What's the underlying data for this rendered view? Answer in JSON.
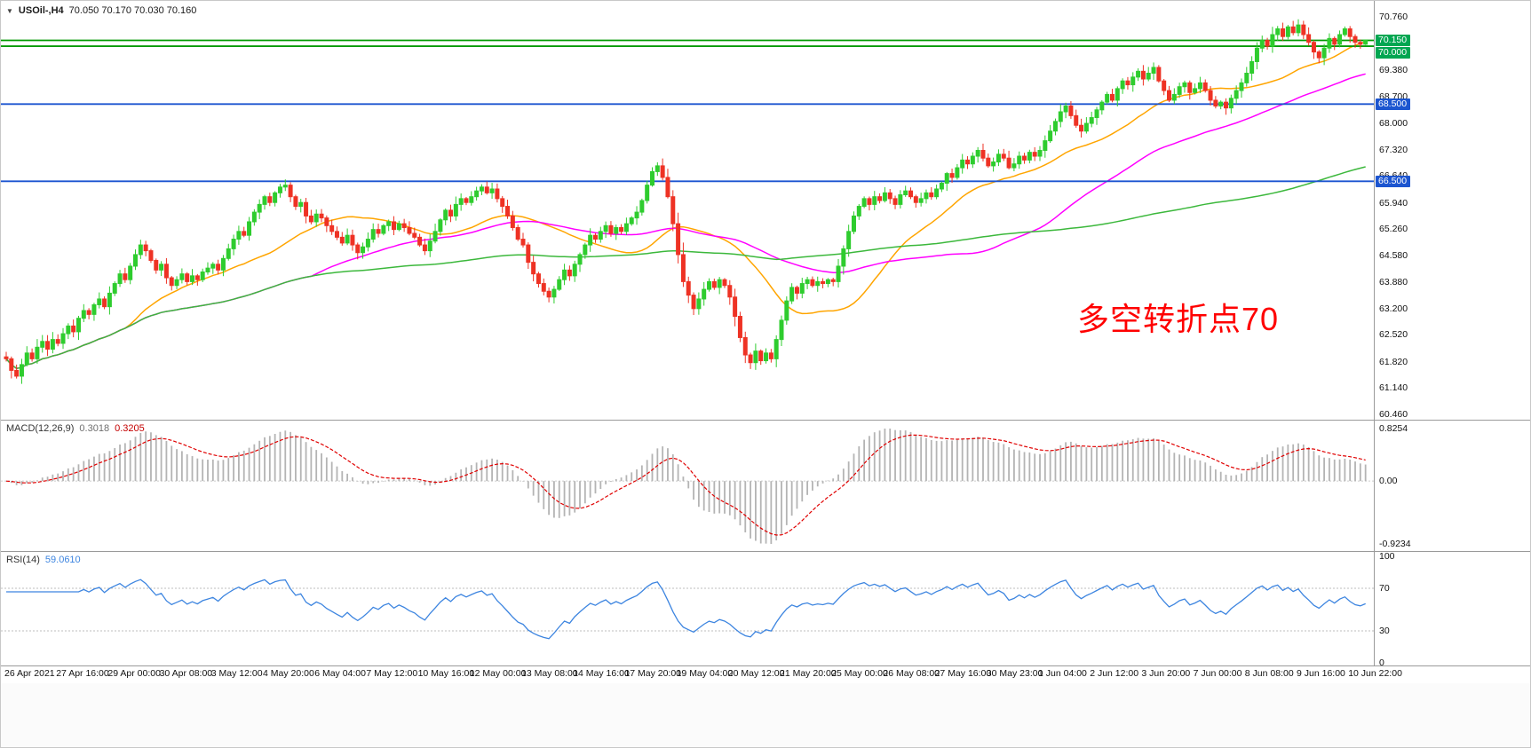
{
  "header": {
    "collapse_icon": "▼",
    "symbol_period": "USOil-,H4",
    "ohlc": "70.050 70.170 70.030 70.160"
  },
  "annotation": {
    "text": "多空转折点70",
    "color": "#ff0000"
  },
  "colors": {
    "candle_up": "#2ecc2e",
    "candle_down": "#ee3224",
    "ma_fast": "#ffa500",
    "ma_mid": "#ff00ff",
    "ma_slow": "#3cb83c",
    "hline_green": "#009a00",
    "hline_blue": "#1c55d0",
    "macd_histogram": "#b4b4b4",
    "macd_signal": "#e00000",
    "rsi_line": "#3d85e0",
    "tag_green": "#00a651",
    "tag_blue": "#1c55d0"
  },
  "main_chart": {
    "y_axis_labels": [
      "70.760",
      "69.380",
      "68.700",
      "68.000",
      "67.320",
      "66.640",
      "65.940",
      "65.260",
      "64.580",
      "63.880",
      "63.200",
      "62.520",
      "61.820",
      "61.140",
      "60.460"
    ],
    "price_tags": [
      {
        "value": "70.150",
        "color": "#00a651"
      },
      {
        "value": "70.000",
        "color": "#00a651"
      },
      {
        "value": "68.500",
        "color": "#1c55d0"
      },
      {
        "value": "66.500",
        "color": "#1c55d0"
      }
    ],
    "horizontal_lines": [
      {
        "price": 70.15,
        "color": "#009a00"
      },
      {
        "price": 70.0,
        "color": "#009a00"
      },
      {
        "price": 68.5,
        "color": "#1c55d0"
      },
      {
        "price": 66.5,
        "color": "#1c55d0"
      }
    ],
    "price_axis_min": 60.46,
    "price_axis_max": 70.76,
    "moving_averages": [
      {
        "name": "fast",
        "period": 24,
        "color": "#ffa500"
      },
      {
        "name": "mid",
        "period": 60,
        "color": "#ff00ff"
      },
      {
        "name": "slow",
        "period": 150,
        "color": "#3cb83c"
      }
    ]
  },
  "chart_data": {
    "type": "candlestick",
    "title": "USOil-,H4 70.050 70.170 70.030 70.160",
    "symbol": "USOil-",
    "timeframe": "H4",
    "x_labels": [
      "26 Apr 2021",
      "27 Apr 16:00",
      "29 Apr 00:00",
      "30 Apr 08:00",
      "3 May 12:00",
      "4 May 20:00",
      "6 May 04:00",
      "7 May 12:00",
      "10 May 16:00",
      "12 May 00:00",
      "13 May 08:00",
      "14 May 16:00",
      "17 May 20:00",
      "19 May 04:00",
      "20 May 12:00",
      "21 May 20:00",
      "25 May 00:00",
      "26 May 08:00",
      "27 May 16:00",
      "30 May 23:00",
      "1 Jun 04:00",
      "2 Jun 12:00",
      "3 Jun 20:00",
      "7 Jun 00:00",
      "8 Jun 08:00",
      "9 Jun 16:00",
      "10 Jun 22:00"
    ],
    "x_label_bar_indices": [
      0,
      10,
      20,
      30,
      40,
      50,
      60,
      70,
      80,
      90,
      100,
      110,
      120,
      130,
      140,
      150,
      160,
      170,
      180,
      190,
      200,
      210,
      220,
      230,
      240,
      250,
      260
    ],
    "ylim": [
      60.46,
      70.76
    ],
    "closes": [
      61.9,
      61.6,
      61.45,
      61.75,
      62.05,
      61.9,
      62.2,
      62.35,
      62.15,
      62.4,
      62.3,
      62.55,
      62.75,
      62.6,
      62.95,
      63.15,
      63.05,
      63.3,
      63.45,
      63.25,
      63.6,
      63.85,
      64.1,
      63.95,
      64.3,
      64.6,
      64.85,
      64.7,
      64.45,
      64.2,
      64.35,
      64.0,
      63.8,
      63.95,
      64.1,
      63.9,
      64.05,
      63.95,
      64.15,
      64.25,
      64.35,
      64.2,
      64.5,
      64.75,
      65.0,
      65.2,
      65.1,
      65.45,
      65.7,
      65.9,
      66.1,
      65.95,
      66.2,
      66.35,
      66.4,
      66.1,
      65.85,
      65.95,
      65.6,
      65.45,
      65.65,
      65.55,
      65.35,
      65.2,
      65.05,
      64.9,
      65.1,
      64.85,
      64.65,
      64.8,
      65.0,
      65.25,
      65.15,
      65.35,
      65.45,
      65.25,
      65.4,
      65.3,
      65.15,
      65.05,
      64.85,
      64.7,
      64.95,
      65.2,
      65.5,
      65.75,
      65.6,
      65.9,
      66.05,
      65.95,
      66.1,
      66.25,
      66.35,
      66.2,
      66.3,
      66.05,
      65.85,
      65.6,
      65.3,
      65.0,
      64.85,
      64.4,
      64.1,
      63.85,
      63.65,
      63.5,
      63.7,
      63.95,
      64.2,
      64.05,
      64.35,
      64.6,
      64.85,
      65.1,
      65.0,
      65.2,
      65.35,
      65.15,
      65.3,
      65.2,
      65.4,
      65.55,
      65.7,
      66.0,
      66.4,
      66.75,
      66.9,
      66.6,
      66.1,
      65.4,
      64.6,
      63.9,
      63.55,
      63.2,
      63.45,
      63.7,
      63.9,
      63.75,
      63.95,
      63.8,
      63.5,
      63.0,
      62.45,
      62.0,
      61.8,
      62.1,
      61.85,
      62.05,
      61.9,
      62.4,
      62.9,
      63.4,
      63.75,
      63.6,
      63.85,
      63.95,
      63.8,
      63.9,
      63.85,
      63.95,
      63.9,
      64.3,
      64.75,
      65.2,
      65.6,
      65.85,
      66.05,
      65.9,
      66.1,
      66.0,
      66.2,
      66.05,
      65.9,
      66.15,
      66.25,
      66.1,
      65.95,
      66.05,
      66.2,
      66.1,
      66.3,
      66.45,
      66.7,
      66.6,
      66.85,
      67.05,
      66.95,
      67.15,
      67.3,
      67.1,
      66.9,
      67.0,
      67.2,
      67.1,
      66.85,
      66.95,
      67.15,
      67.05,
      67.25,
      67.15,
      67.3,
      67.55,
      67.8,
      68.05,
      68.3,
      68.45,
      68.2,
      67.95,
      67.8,
      68.0,
      68.15,
      68.35,
      68.55,
      68.75,
      68.6,
      68.9,
      69.1,
      69.0,
      69.2,
      69.35,
      69.15,
      69.3,
      69.45,
      69.1,
      68.85,
      68.6,
      68.75,
      68.95,
      69.05,
      68.8,
      68.9,
      69.05,
      68.85,
      68.6,
      68.45,
      68.55,
      68.4,
      68.65,
      68.85,
      69.05,
      69.3,
      69.6,
      69.95,
      70.15,
      70.0,
      70.3,
      70.45,
      70.25,
      70.5,
      70.35,
      70.55,
      70.3,
      70.1,
      69.85,
      69.7,
      69.95,
      70.2,
      70.05,
      70.3,
      70.45,
      70.25,
      70.1,
      70.05,
      70.16
    ],
    "current_bar": {
      "open": 70.05,
      "high": 70.17,
      "low": 70.03,
      "close": 70.16
    }
  },
  "macd": {
    "label": "MACD(12,26,9)",
    "value_main": "0.3018",
    "value_signal": "0.3205",
    "axis_labels": [
      "0.8254",
      "0.00",
      "-0.9234"
    ],
    "fast": 12,
    "slow": 26,
    "signal": 9
  },
  "rsi": {
    "label": "RSI(14)",
    "value": "59.0610",
    "axis_labels": [
      "100",
      "70",
      "30",
      "0"
    ],
    "levels": [
      70,
      30
    ],
    "period": 14
  }
}
